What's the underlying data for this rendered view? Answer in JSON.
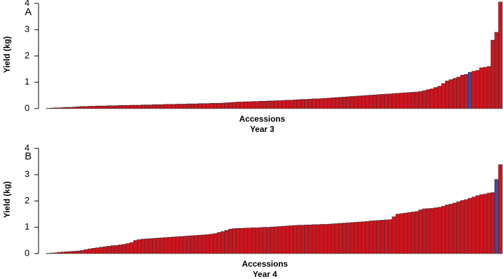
{
  "chart_data": [
    {
      "type": "bar",
      "panel_label": "A",
      "ylabel": "Yield (kg)",
      "xlabel": "Accessions",
      "subtitle": "Year 3",
      "ylim": [
        0,
        4.1
      ],
      "yticks": [
        0,
        1,
        2,
        3,
        4
      ],
      "color": "#d0141e",
      "highlight_color": "#3a4a9c",
      "highlight_index": 111,
      "series": [
        {
          "values": [
            0.01,
            0.02,
            0.03,
            0.03,
            0.04,
            0.05,
            0.05,
            0.06,
            0.07,
            0.08,
            0.08,
            0.09,
            0.09,
            0.1,
            0.1,
            0.1,
            0.11,
            0.11,
            0.11,
            0.12,
            0.12,
            0.12,
            0.13,
            0.13,
            0.13,
            0.14,
            0.14,
            0.14,
            0.15,
            0.15,
            0.15,
            0.16,
            0.16,
            0.16,
            0.17,
            0.17,
            0.17,
            0.18,
            0.18,
            0.18,
            0.19,
            0.19,
            0.19,
            0.2,
            0.2,
            0.2,
            0.21,
            0.22,
            0.23,
            0.24,
            0.25,
            0.25,
            0.26,
            0.26,
            0.27,
            0.27,
            0.28,
            0.28,
            0.29,
            0.29,
            0.3,
            0.3,
            0.31,
            0.32,
            0.32,
            0.33,
            0.34,
            0.35,
            0.35,
            0.36,
            0.37,
            0.37,
            0.38,
            0.39,
            0.4,
            0.41,
            0.42,
            0.43,
            0.44,
            0.45,
            0.46,
            0.47,
            0.48,
            0.49,
            0.5,
            0.51,
            0.52,
            0.53,
            0.54,
            0.55,
            0.56,
            0.57,
            0.58,
            0.59,
            0.6,
            0.61,
            0.62,
            0.63,
            0.65,
            0.68,
            0.72,
            0.75,
            0.8,
            0.85,
            0.95,
            1.05,
            1.1,
            1.15,
            1.2,
            1.27,
            1.3,
            1.38,
            1.42,
            1.45,
            1.55,
            1.57,
            1.6,
            2.6,
            2.9,
            4.05
          ]
        }
      ]
    },
    {
      "type": "bar",
      "panel_label": "B",
      "ylabel": "Yield (kg)",
      "xlabel": "Accessions",
      "subtitle": "Year 4",
      "ylim": [
        0,
        4.1
      ],
      "yticks": [
        0,
        1,
        2,
        3,
        4
      ],
      "color": "#d0141e",
      "highlight_color": "#3a4a9c",
      "highlight_index": 118,
      "series": [
        {
          "values": [
            0.01,
            0.02,
            0.03,
            0.05,
            0.06,
            0.07,
            0.08,
            0.09,
            0.1,
            0.12,
            0.15,
            0.18,
            0.2,
            0.22,
            0.24,
            0.26,
            0.28,
            0.3,
            0.31,
            0.33,
            0.35,
            0.38,
            0.42,
            0.5,
            0.53,
            0.55,
            0.56,
            0.57,
            0.58,
            0.59,
            0.6,
            0.61,
            0.62,
            0.63,
            0.64,
            0.65,
            0.66,
            0.67,
            0.68,
            0.69,
            0.7,
            0.71,
            0.72,
            0.74,
            0.76,
            0.8,
            0.84,
            0.88,
            0.93,
            0.95,
            0.96,
            0.96,
            0.97,
            0.97,
            0.98,
            0.98,
            0.99,
            1.0,
            1.0,
            1.01,
            1.02,
            1.03,
            1.04,
            1.05,
            1.06,
            1.07,
            1.08,
            1.08,
            1.09,
            1.09,
            1.1,
            1.1,
            1.11,
            1.11,
            1.12,
            1.13,
            1.14,
            1.15,
            1.16,
            1.17,
            1.18,
            1.19,
            1.2,
            1.21,
            1.22,
            1.24,
            1.25,
            1.26,
            1.27,
            1.28,
            1.29,
            1.4,
            1.5,
            1.52,
            1.54,
            1.56,
            1.58,
            1.6,
            1.66,
            1.7,
            1.71,
            1.72,
            1.74,
            1.76,
            1.8,
            1.85,
            1.88,
            1.92,
            1.97,
            2.02,
            2.05,
            2.1,
            2.15,
            2.2,
            2.24,
            2.26,
            2.3,
            2.32,
            2.82,
            3.38
          ]
        }
      ]
    }
  ]
}
